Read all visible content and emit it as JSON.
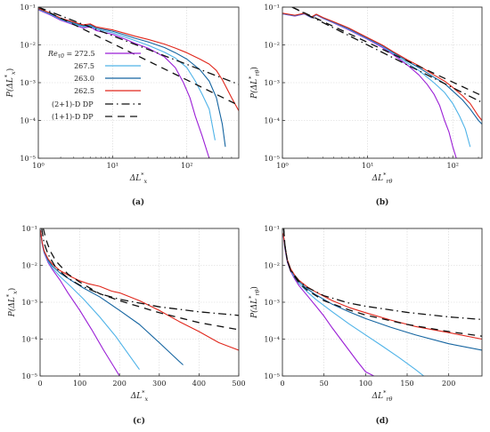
{
  "colors": {
    "purple": "#9b1fd6",
    "lightblue": "#4fb3e8",
    "darkblue": "#1464a0",
    "red": "#e0261b",
    "dp": "#111111",
    "grid": "#d4d4d4",
    "frame": "#333333"
  },
  "legend": {
    "heading": "Re",
    "heading_sub": "τ0",
    "entries": [
      "= 272.5",
      "267.5",
      "263.0",
      "262.5"
    ],
    "dp_entries": [
      "(2+1)-D DP",
      "(1+1)-D DP"
    ]
  },
  "chart_data": [
    {
      "id": "a",
      "caption": "(a)",
      "type": "line",
      "xscale": "log",
      "yscale": "log",
      "xlim": [
        1,
        500
      ],
      "ylim": [
        1e-05,
        0.1
      ],
      "xticks": [
        1,
        10,
        100
      ],
      "xtick_labels": [
        "10⁰",
        "10¹",
        "10²"
      ],
      "yticks": [
        1e-05,
        0.0001,
        0.001,
        0.01,
        0.1
      ],
      "ytick_labels": [
        "10⁻⁵",
        "10⁻⁴",
        "10⁻³",
        "10⁻²",
        "10⁻¹"
      ],
      "xlabel": "ΔL",
      "xlabel_sup": "*",
      "xlabel_sub": "x",
      "ylabel": "P(ΔL",
      "ylabel_sup": "*",
      "ylabel_sub": "x",
      "ylabel_close": ")",
      "grid": true,
      "legend_placement": "center-left",
      "series": [
        {
          "color": "purple",
          "x": [
            1,
            1.5,
            2,
            3,
            4,
            5,
            6,
            8,
            10,
            15,
            20,
            30,
            50,
            70,
            90,
            110,
            130,
            160,
            200
          ],
          "y": [
            0.085,
            0.06,
            0.045,
            0.034,
            0.028,
            0.03,
            0.024,
            0.021,
            0.019,
            0.014,
            0.011,
            0.0082,
            0.0048,
            0.0025,
            0.001,
            0.0004,
            0.00013,
            4e-05,
            1e-05
          ]
        },
        {
          "color": "lightblue",
          "x": [
            1,
            1.5,
            2,
            3,
            4,
            5,
            6,
            8,
            10,
            15,
            20,
            30,
            50,
            70,
            100,
            130,
            160,
            200,
            240
          ],
          "y": [
            0.088,
            0.063,
            0.047,
            0.036,
            0.03,
            0.032,
            0.026,
            0.023,
            0.021,
            0.016,
            0.013,
            0.0098,
            0.0064,
            0.0045,
            0.0025,
            0.0011,
            0.0005,
            0.0002,
            3e-05
          ]
        },
        {
          "color": "darkblue",
          "x": [
            1,
            1.5,
            2,
            3,
            4,
            5,
            6,
            8,
            10,
            15,
            20,
            30,
            50,
            70,
            100,
            150,
            200,
            250,
            300,
            330
          ],
          "y": [
            0.09,
            0.066,
            0.049,
            0.038,
            0.032,
            0.034,
            0.028,
            0.025,
            0.023,
            0.018,
            0.015,
            0.012,
            0.0085,
            0.0062,
            0.0042,
            0.0022,
            0.0011,
            0.0004,
            8e-05,
            2e-05
          ]
        },
        {
          "color": "red",
          "x": [
            1,
            1.5,
            2,
            3,
            4,
            5,
            6,
            8,
            10,
            15,
            20,
            30,
            50,
            70,
            100,
            150,
            200,
            250,
            300,
            400,
            500
          ],
          "y": [
            0.092,
            0.068,
            0.051,
            0.04,
            0.034,
            0.036,
            0.03,
            0.027,
            0.025,
            0.02,
            0.017,
            0.014,
            0.0105,
            0.0082,
            0.0062,
            0.0042,
            0.0031,
            0.0021,
            0.0012,
            0.0004,
            0.00018
          ]
        }
      ],
      "dp_lines": [
        {
          "style": "dashdot",
          "x": [
            1,
            500
          ],
          "y": [
            0.1,
            0.0009
          ]
        },
        {
          "style": "dashed",
          "x": [
            1,
            500
          ],
          "y": [
            0.1,
            0.00025
          ]
        }
      ]
    },
    {
      "id": "b",
      "caption": "(b)",
      "type": "line",
      "xscale": "log",
      "yscale": "log",
      "xlim": [
        1,
        220
      ],
      "ylim": [
        1e-05,
        0.1
      ],
      "xticks": [
        1,
        10,
        100
      ],
      "xtick_labels": [
        "10⁰",
        "10¹",
        "10²"
      ],
      "yticks": [
        1e-05,
        0.0001,
        0.001,
        0.01,
        0.1
      ],
      "ytick_labels": [
        "10⁻⁵",
        "10⁻⁴",
        "10⁻³",
        "10⁻²",
        "10⁻¹"
      ],
      "xlabel": "ΔL",
      "xlabel_sup": "*",
      "xlabel_sub": "rθ",
      "ylabel": "P(ΔL",
      "ylabel_sup": "*",
      "ylabel_sub": "rθ",
      "ylabel_close": ")",
      "grid": true,
      "series": [
        {
          "color": "purple",
          "x": [
            1,
            1.4,
            1.8,
            2.2,
            2.5,
            3,
            4,
            6,
            10,
            15,
            20,
            30,
            40,
            50,
            60,
            70,
            80,
            90,
            100,
            110
          ],
          "y": [
            0.066,
            0.058,
            0.066,
            0.052,
            0.062,
            0.05,
            0.038,
            0.025,
            0.014,
            0.0085,
            0.0055,
            0.0028,
            0.0016,
            0.0009,
            0.0005,
            0.00025,
            0.0001,
            5e-05,
            2e-05,
            1e-05
          ]
        },
        {
          "color": "lightblue",
          "x": [
            1,
            1.4,
            1.8,
            2.2,
            2.5,
            3,
            4,
            6,
            10,
            15,
            20,
            30,
            40,
            50,
            60,
            80,
            100,
            120,
            140,
            160
          ],
          "y": [
            0.067,
            0.059,
            0.067,
            0.053,
            0.063,
            0.051,
            0.039,
            0.026,
            0.0145,
            0.009,
            0.0059,
            0.0032,
            0.0021,
            0.0014,
            0.001,
            0.00055,
            0.00028,
            0.00013,
            6e-05,
            2e-05
          ]
        },
        {
          "color": "darkblue",
          "x": [
            1,
            1.4,
            1.8,
            2.2,
            2.5,
            3,
            4,
            6,
            10,
            15,
            20,
            30,
            40,
            60,
            80,
            100,
            130,
            160,
            200,
            220
          ],
          "y": [
            0.068,
            0.06,
            0.068,
            0.054,
            0.064,
            0.052,
            0.04,
            0.027,
            0.015,
            0.0095,
            0.0063,
            0.0036,
            0.0025,
            0.0014,
            0.00095,
            0.0006,
            0.00035,
            0.0002,
            0.0001,
            8e-05
          ]
        },
        {
          "color": "red",
          "x": [
            1,
            1.4,
            1.8,
            2.2,
            2.5,
            3,
            4,
            6,
            10,
            15,
            20,
            30,
            40,
            60,
            80,
            100,
            130,
            160,
            200,
            220
          ],
          "y": [
            0.069,
            0.061,
            0.069,
            0.055,
            0.065,
            0.053,
            0.041,
            0.028,
            0.0155,
            0.0098,
            0.0066,
            0.0039,
            0.0028,
            0.0016,
            0.0011,
            0.00075,
            0.00045,
            0.00028,
            0.00013,
            0.0001
          ]
        }
      ],
      "dp_lines": [
        {
          "style": "dashdot",
          "x": [
            1.3,
            220
          ],
          "y": [
            0.1,
            0.0003
          ]
        },
        {
          "style": "dashed",
          "x": [
            1.3,
            220
          ],
          "y": [
            0.1,
            0.00045
          ]
        }
      ]
    },
    {
      "id": "c",
      "caption": "(c)",
      "type": "line",
      "xscale": "linear",
      "yscale": "log",
      "xlim": [
        0,
        500
      ],
      "ylim": [
        1e-05,
        0.1
      ],
      "xticks": [
        0,
        100,
        200,
        300,
        400,
        500
      ],
      "xtick_labels": [
        "0",
        "100",
        "200",
        "300",
        "400",
        "500"
      ],
      "yticks": [
        1e-05,
        0.0001,
        0.001,
        0.01,
        0.1
      ],
      "ytick_labels": [
        "10⁻⁵",
        "10⁻⁴",
        "10⁻³",
        "10⁻²",
        "10⁻¹"
      ],
      "xlabel": "ΔL",
      "xlabel_sup": "*",
      "xlabel_sub": "x",
      "ylabel": "P(ΔL",
      "ylabel_sup": "*",
      "ylabel_sub": "x",
      "ylabel_close": ")",
      "grid": true,
      "series": [
        {
          "color": "purple",
          "x": [
            1,
            5,
            10,
            20,
            30,
            50,
            70,
            100,
            130,
            160,
            190,
            200
          ],
          "y": [
            0.09,
            0.04,
            0.022,
            0.012,
            0.008,
            0.004,
            0.0018,
            0.0006,
            0.00018,
            5e-05,
            1.5e-05,
            1e-05
          ]
        },
        {
          "color": "lightblue",
          "x": [
            1,
            5,
            10,
            20,
            30,
            50,
            80,
            110,
            150,
            190,
            230,
            250
          ],
          "y": [
            0.09,
            0.041,
            0.023,
            0.013,
            0.0088,
            0.005,
            0.0025,
            0.0012,
            0.0004,
            0.00012,
            3e-05,
            1.5e-05
          ]
        },
        {
          "color": "darkblue",
          "x": [
            1,
            5,
            10,
            20,
            30,
            50,
            80,
            110,
            150,
            200,
            250,
            300,
            350,
            360
          ],
          "y": [
            0.09,
            0.042,
            0.024,
            0.014,
            0.0098,
            0.0062,
            0.0038,
            0.0024,
            0.0014,
            0.0006,
            0.00025,
            8e-05,
            2.5e-05,
            2e-05
          ]
        },
        {
          "color": "red",
          "x": [
            1,
            5,
            10,
            20,
            30,
            50,
            80,
            100,
            120,
            150,
            180,
            200,
            250,
            300,
            350,
            400,
            450,
            500
          ],
          "y": [
            0.09,
            0.043,
            0.025,
            0.015,
            0.011,
            0.0072,
            0.0048,
            0.0038,
            0.0032,
            0.0027,
            0.002,
            0.0018,
            0.0011,
            0.0006,
            0.0003,
            0.00016,
            8e-05,
            5e-05
          ]
        }
      ],
      "dp_lines": [
        {
          "style": "dashdot",
          "x": [
            4,
            10,
            20,
            40,
            70,
            100,
            150,
            200,
            300,
            400,
            500
          ],
          "y": [
            0.1,
            0.04,
            0.02,
            0.0085,
            0.0045,
            0.0029,
            0.0017,
            0.0012,
            0.00075,
            0.00055,
            0.00044
          ]
        },
        {
          "style": "dashed",
          "x": [
            8,
            15,
            25,
            40,
            70,
            100,
            150,
            200,
            300,
            400,
            500
          ],
          "y": [
            0.1,
            0.05,
            0.025,
            0.013,
            0.0058,
            0.0035,
            0.0017,
            0.0011,
            0.00052,
            0.00028,
            0.00018
          ]
        }
      ]
    },
    {
      "id": "d",
      "caption": "(d)",
      "type": "line",
      "xscale": "linear",
      "yscale": "log",
      "xlim": [
        0,
        240
      ],
      "ylim": [
        1e-05,
        0.1
      ],
      "xticks": [
        0,
        50,
        100,
        150,
        200
      ],
      "xtick_labels": [
        "0",
        "50",
        "100",
        "150",
        "200"
      ],
      "yticks": [
        1e-05,
        0.0001,
        0.001,
        0.01,
        0.1
      ],
      "ytick_labels": [
        "10⁻⁵",
        "10⁻⁴",
        "10⁻³",
        "10⁻²",
        "10⁻¹"
      ],
      "xlabel": "ΔL",
      "xlabel_sup": "*",
      "xlabel_sub": "rθ",
      "ylabel": "P(ΔL",
      "ylabel_sup": "*",
      "ylabel_sub": "rθ",
      "ylabel_close": ")",
      "grid": true,
      "series": [
        {
          "color": "purple",
          "x": [
            1,
            3,
            6,
            10,
            15,
            20,
            30,
            40,
            50,
            60,
            70,
            80,
            90,
            100,
            110
          ],
          "y": [
            0.07,
            0.028,
            0.012,
            0.0068,
            0.0042,
            0.0028,
            0.0015,
            0.0008,
            0.00042,
            0.0002,
            0.0001,
            5e-05,
            2.5e-05,
            1.3e-05,
            1e-05
          ]
        },
        {
          "color": "lightblue",
          "x": [
            1,
            3,
            6,
            10,
            15,
            20,
            30,
            40,
            60,
            80,
            100,
            120,
            140,
            160,
            170
          ],
          "y": [
            0.072,
            0.03,
            0.013,
            0.0072,
            0.0046,
            0.0032,
            0.0019,
            0.0012,
            0.00055,
            0.00026,
            0.00013,
            6.5e-05,
            3.2e-05,
            1.5e-05,
            1e-05
          ]
        },
        {
          "color": "darkblue",
          "x": [
            1,
            3,
            6,
            10,
            15,
            20,
            30,
            40,
            60,
            80,
            100,
            130,
            160,
            200,
            240
          ],
          "y": [
            0.073,
            0.031,
            0.0135,
            0.0076,
            0.005,
            0.0036,
            0.0023,
            0.0016,
            0.00088,
            0.00055,
            0.00036,
            0.00021,
            0.00013,
            7.5e-05,
            5e-05
          ]
        },
        {
          "color": "red",
          "x": [
            1,
            3,
            6,
            10,
            15,
            20,
            30,
            40,
            60,
            80,
            100,
            130,
            160,
            200,
            240
          ],
          "y": [
            0.074,
            0.032,
            0.014,
            0.008,
            0.0053,
            0.0039,
            0.0026,
            0.0019,
            0.0011,
            0.00072,
            0.00052,
            0.00033,
            0.00022,
            0.00015,
            0.0001
          ]
        }
      ],
      "dp_lines": [
        {
          "style": "dashdot",
          "x": [
            1.5,
            3,
            6,
            10,
            20,
            30,
            50,
            80,
            100,
            150,
            200,
            240
          ],
          "y": [
            0.1,
            0.035,
            0.013,
            0.0075,
            0.0037,
            0.0025,
            0.0015,
            0.00095,
            0.00078,
            0.00053,
            0.0004,
            0.00034
          ]
        },
        {
          "style": "dashed",
          "x": [
            1.5,
            3,
            6,
            10,
            20,
            30,
            50,
            80,
            100,
            150,
            200,
            240
          ],
          "y": [
            0.1,
            0.035,
            0.013,
            0.007,
            0.0033,
            0.0021,
            0.0011,
            0.00062,
            0.00045,
            0.00025,
            0.00016,
            0.00012
          ]
        }
      ]
    }
  ]
}
